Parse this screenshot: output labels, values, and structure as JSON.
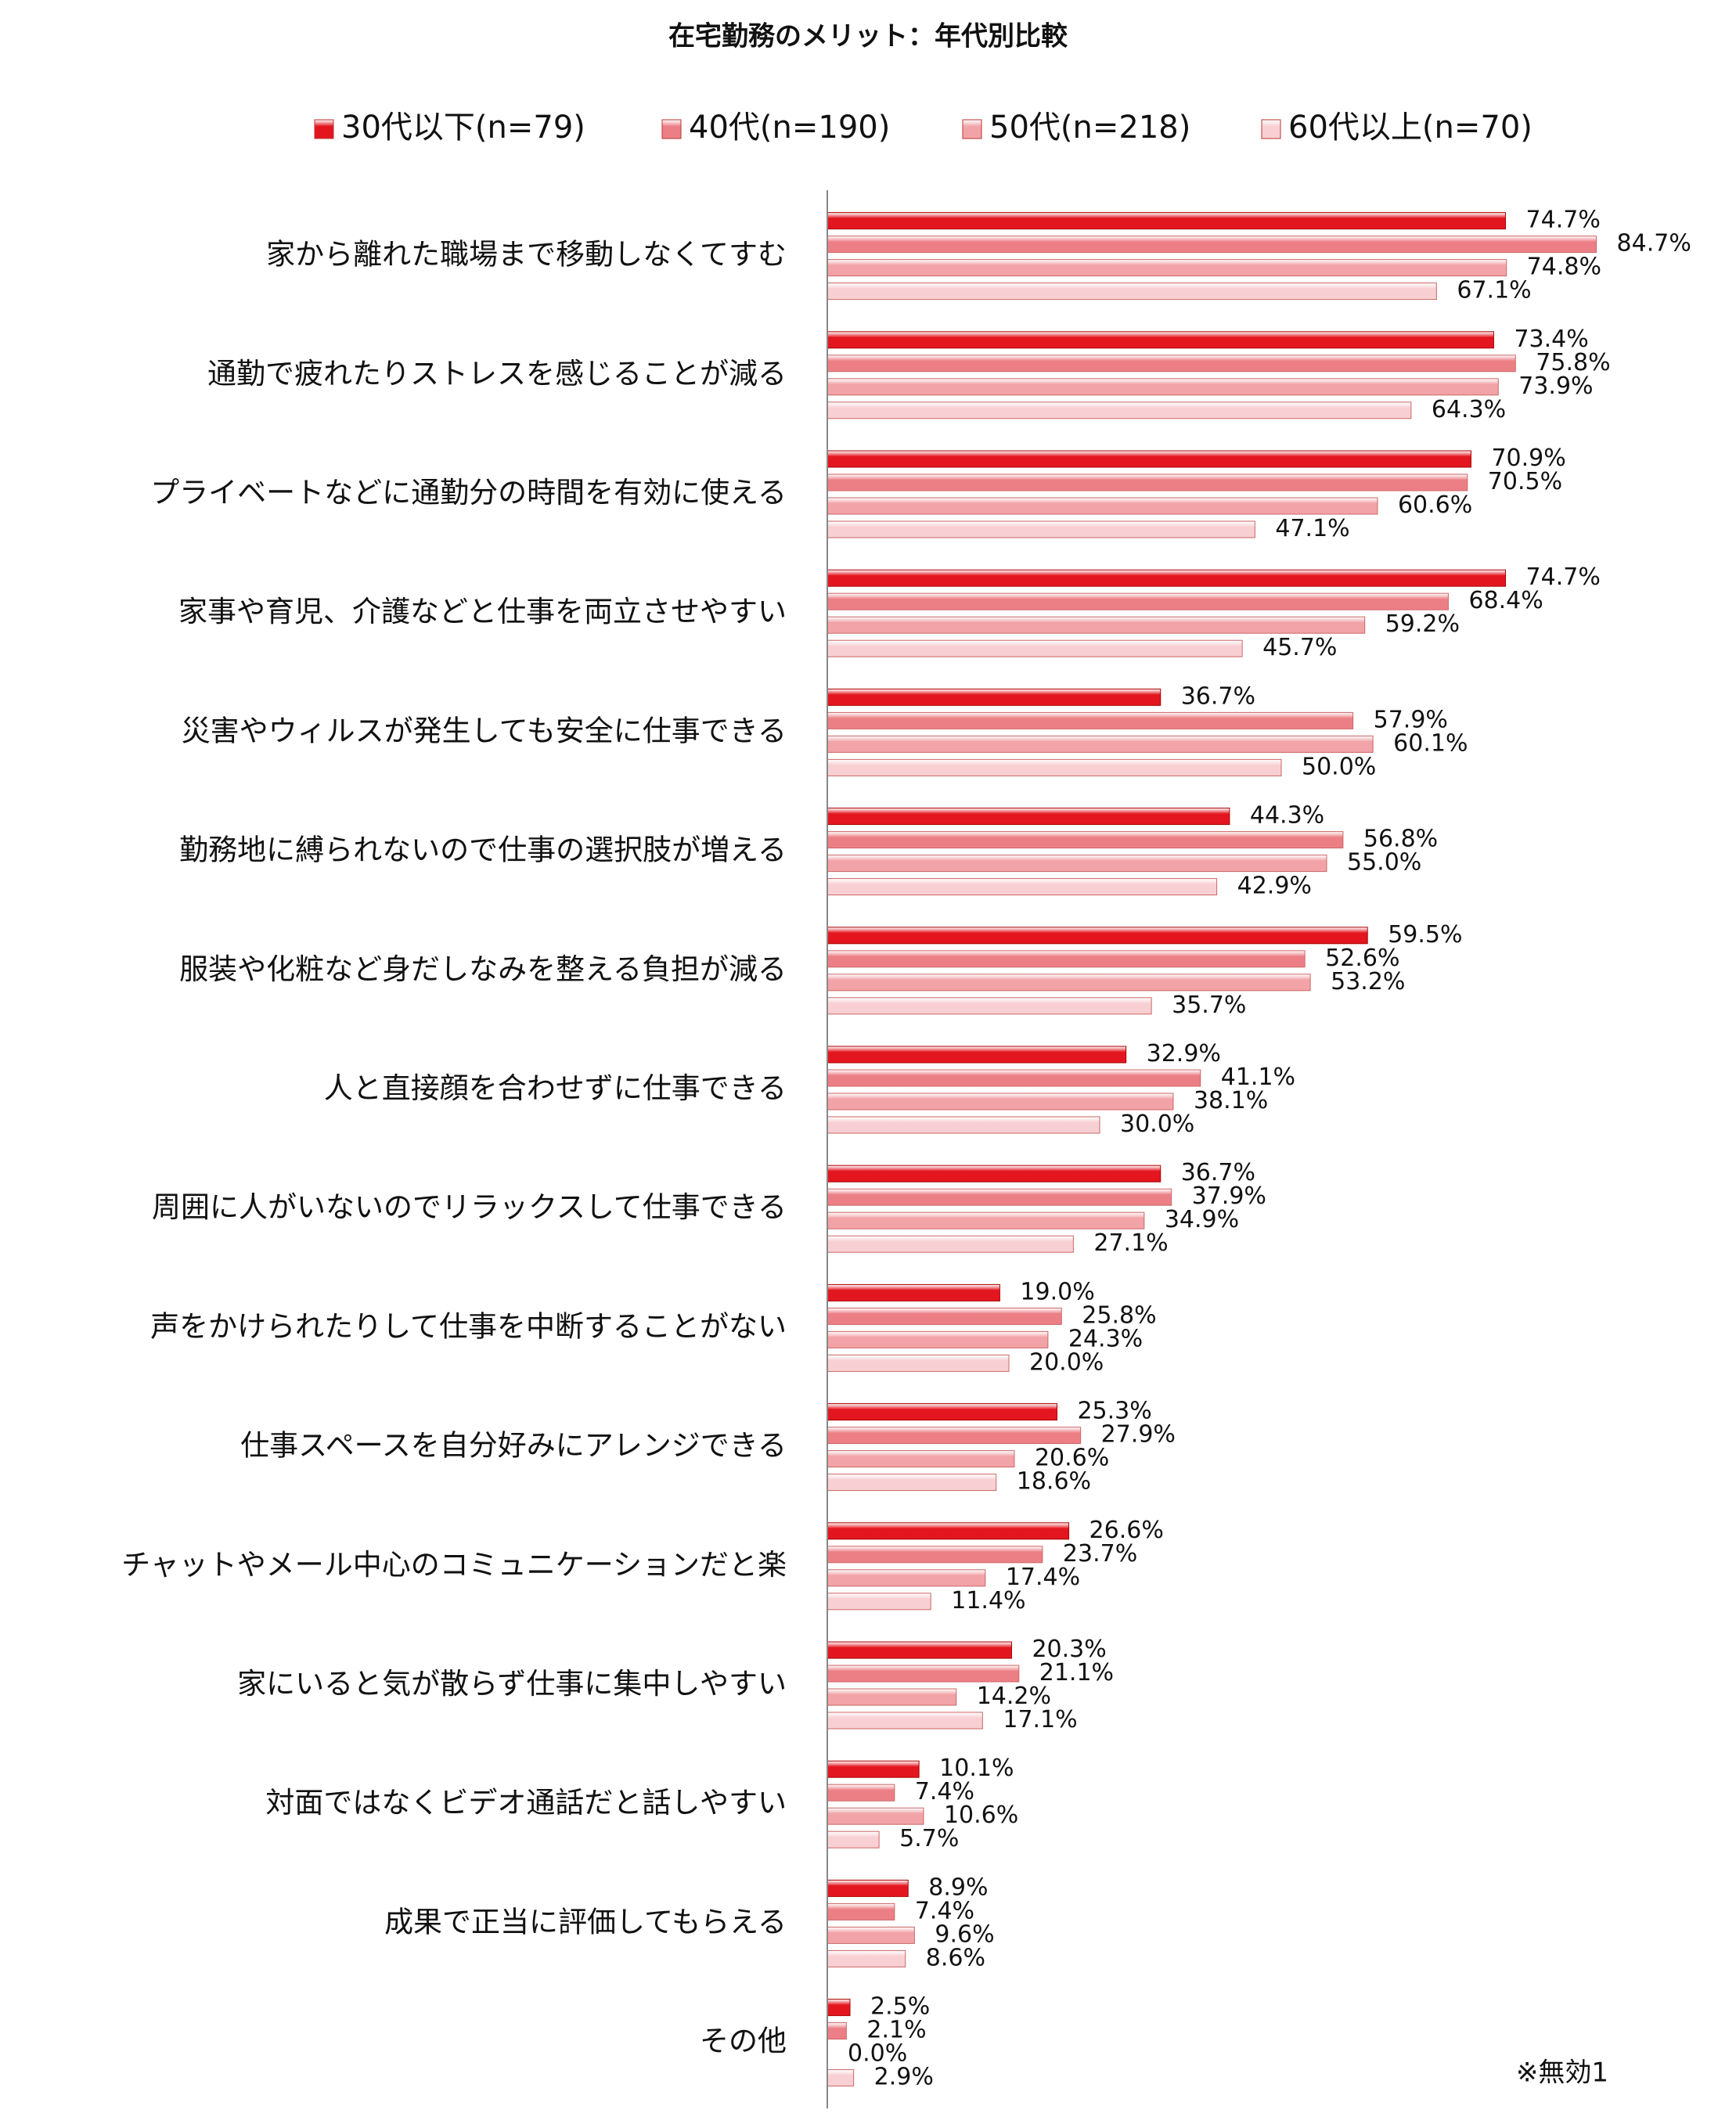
{
  "chart_data": {
    "type": "hbar",
    "title": "在宅勤務のメリット：年代別比較",
    "annotation": "※無効1",
    "categories": [
      "家から離れた職場まで移動しなくてすむ",
      "通勤で疲れたりストレスを感じることが減る",
      "プライベートなどに通勤分の時間を有効に使える",
      "家事や育児、介護などと仕事を両立させやすい",
      "災害やウィルスが発生しても安全に仕事できる",
      "勤務地に縛られないので仕事の選択肢が増える",
      "服装や化粧など身だしなみを整える負担が減る",
      "人と直接顔を合わせずに仕事できる",
      "周囲に人がいないのでリラックスして仕事できる",
      "声をかけられたりして仕事を中断することがない",
      "仕事スペースを自分好みにアレンジできる",
      "チャットやメール中心のコミュニケーションだと楽",
      "家にいると気が散らず仕事に集中しやすい",
      "対面ではなくビデオ通話だと話しやすい",
      "成果で正当に評価してもらえる",
      "その他"
    ],
    "xlim": [
      0,
      100
    ],
    "series": [
      {
        "name": "30代以下(n=79)",
        "color": "#e3161f",
        "values": [
          74.7,
          73.4,
          70.9,
          74.7,
          36.7,
          44.3,
          59.5,
          32.9,
          36.7,
          19.0,
          25.3,
          26.6,
          20.3,
          10.1,
          8.9,
          2.5
        ],
        "value_labels": [
          "74.7%",
          "73.4%",
          "70.9%",
          "74.7%",
          "36.7%",
          "44.3%",
          "59.5%",
          "32.9%",
          "36.7%",
          "19.0%",
          "25.3%",
          "26.6%",
          "20.3%",
          "10.1%",
          "8.9%",
          "2.5%"
        ]
      },
      {
        "name": "40代(n=190)",
        "color": "#ec7f86",
        "values": [
          84.7,
          75.8,
          70.5,
          68.4,
          57.9,
          56.8,
          52.6,
          41.1,
          37.9,
          25.8,
          27.9,
          23.7,
          21.1,
          7.4,
          7.4,
          2.1
        ],
        "value_labels": [
          "84.7%",
          "75.8%",
          "70.5%",
          "68.4%",
          "57.9%",
          "56.8%",
          "52.6%",
          "41.1%",
          "37.9%",
          "25.8%",
          "27.9%",
          "23.7%",
          "21.1%",
          "7.4%",
          "7.4%",
          "2.1%"
        ]
      },
      {
        "name": "50代(n=218)",
        "color": "#f2a3a8",
        "values": [
          74.8,
          73.9,
          60.6,
          59.2,
          60.1,
          55.0,
          53.2,
          38.1,
          34.9,
          24.3,
          20.6,
          17.4,
          14.2,
          10.6,
          9.6,
          0.0
        ],
        "value_labels": [
          "74.8%",
          "73.9%",
          "60.6%",
          "59.2%",
          "60.1%",
          "55.0%",
          "53.2%",
          "38.1%",
          "34.9%",
          "24.3%",
          "20.6%",
          "17.4%",
          "14.2%",
          "10.6%",
          "9.6%",
          "0.0%"
        ]
      },
      {
        "name": "60代以上(n=70)",
        "color": "#f8d0d3",
        "values": [
          67.1,
          64.3,
          47.1,
          45.7,
          50.0,
          42.9,
          35.7,
          30.0,
          27.1,
          20.0,
          18.6,
          11.4,
          17.1,
          5.7,
          8.6,
          2.9
        ],
        "value_labels": [
          "67.1%",
          "64.3%",
          "47.1%",
          "45.7%",
          "50.0%",
          "42.9%",
          "35.7%",
          "30.0%",
          "27.1%",
          "20.0%",
          "18.6%",
          "11.4%",
          "17.1%",
          "5.7%",
          "8.6%",
          "2.9%"
        ]
      }
    ]
  }
}
